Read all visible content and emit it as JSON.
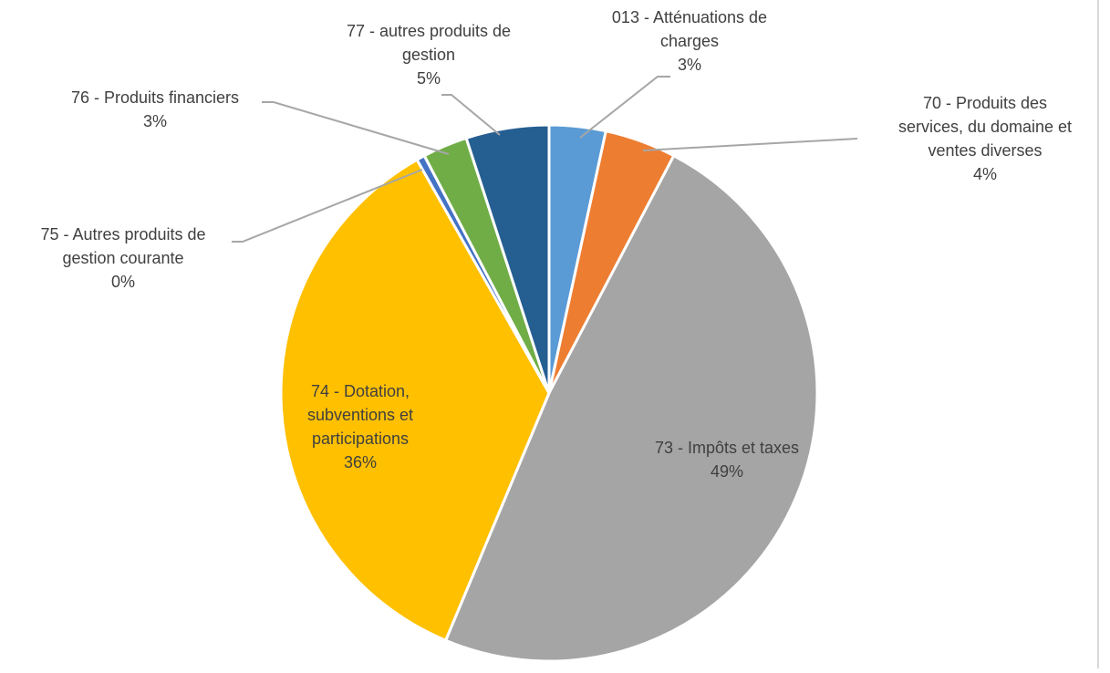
{
  "chart_data": {
    "type": "pie",
    "start_angle_deg": 0,
    "direction": "clockwise",
    "slices": [
      {
        "name": "013 - Atténuations de charges",
        "label_lines": [
          "013 - Atténuations de",
          "charges"
        ],
        "value": 3.4,
        "percent_label": "3%",
        "color": "#5b9bd5",
        "label_inside": false
      },
      {
        "name": "70 - Produits des services, du domaine et ventes diverses",
        "label_lines": [
          "70 - Produits des",
          "services, du domaine et",
          "ventes diverses"
        ],
        "value": 4.3,
        "percent_label": "4%",
        "color": "#ed7d31",
        "label_inside": false
      },
      {
        "name": "73 - Impôts et taxes",
        "label_lines": [
          "73 - Impôts et taxes"
        ],
        "value": 48.6,
        "percent_label": "49%",
        "color": "#a5a5a5",
        "label_inside": true
      },
      {
        "name": "74 - Dotation, subventions et participations",
        "label_lines": [
          "74 - Dotation,",
          "subventions et",
          "participations"
        ],
        "value": 35.5,
        "percent_label": "36%",
        "color": "#ffc000",
        "label_inside": true
      },
      {
        "name": "75 - Autres produits de gestion courante",
        "label_lines": [
          "75 - Autres produits de",
          "gestion courante"
        ],
        "value": 0.5,
        "percent_label": "0%",
        "color": "#4472c4",
        "label_inside": false
      },
      {
        "name": "76 - Produits financiers",
        "label_lines": [
          "76 - Produits financiers"
        ],
        "value": 2.7,
        "percent_label": "3%",
        "color": "#70ad47",
        "label_inside": false
      },
      {
        "name": "77 - autres produits de gestion",
        "label_lines": [
          "77 - autres produits de",
          "gestion"
        ],
        "value": 5.0,
        "percent_label": "5%",
        "color": "#255e91",
        "label_inside": false
      }
    ]
  }
}
